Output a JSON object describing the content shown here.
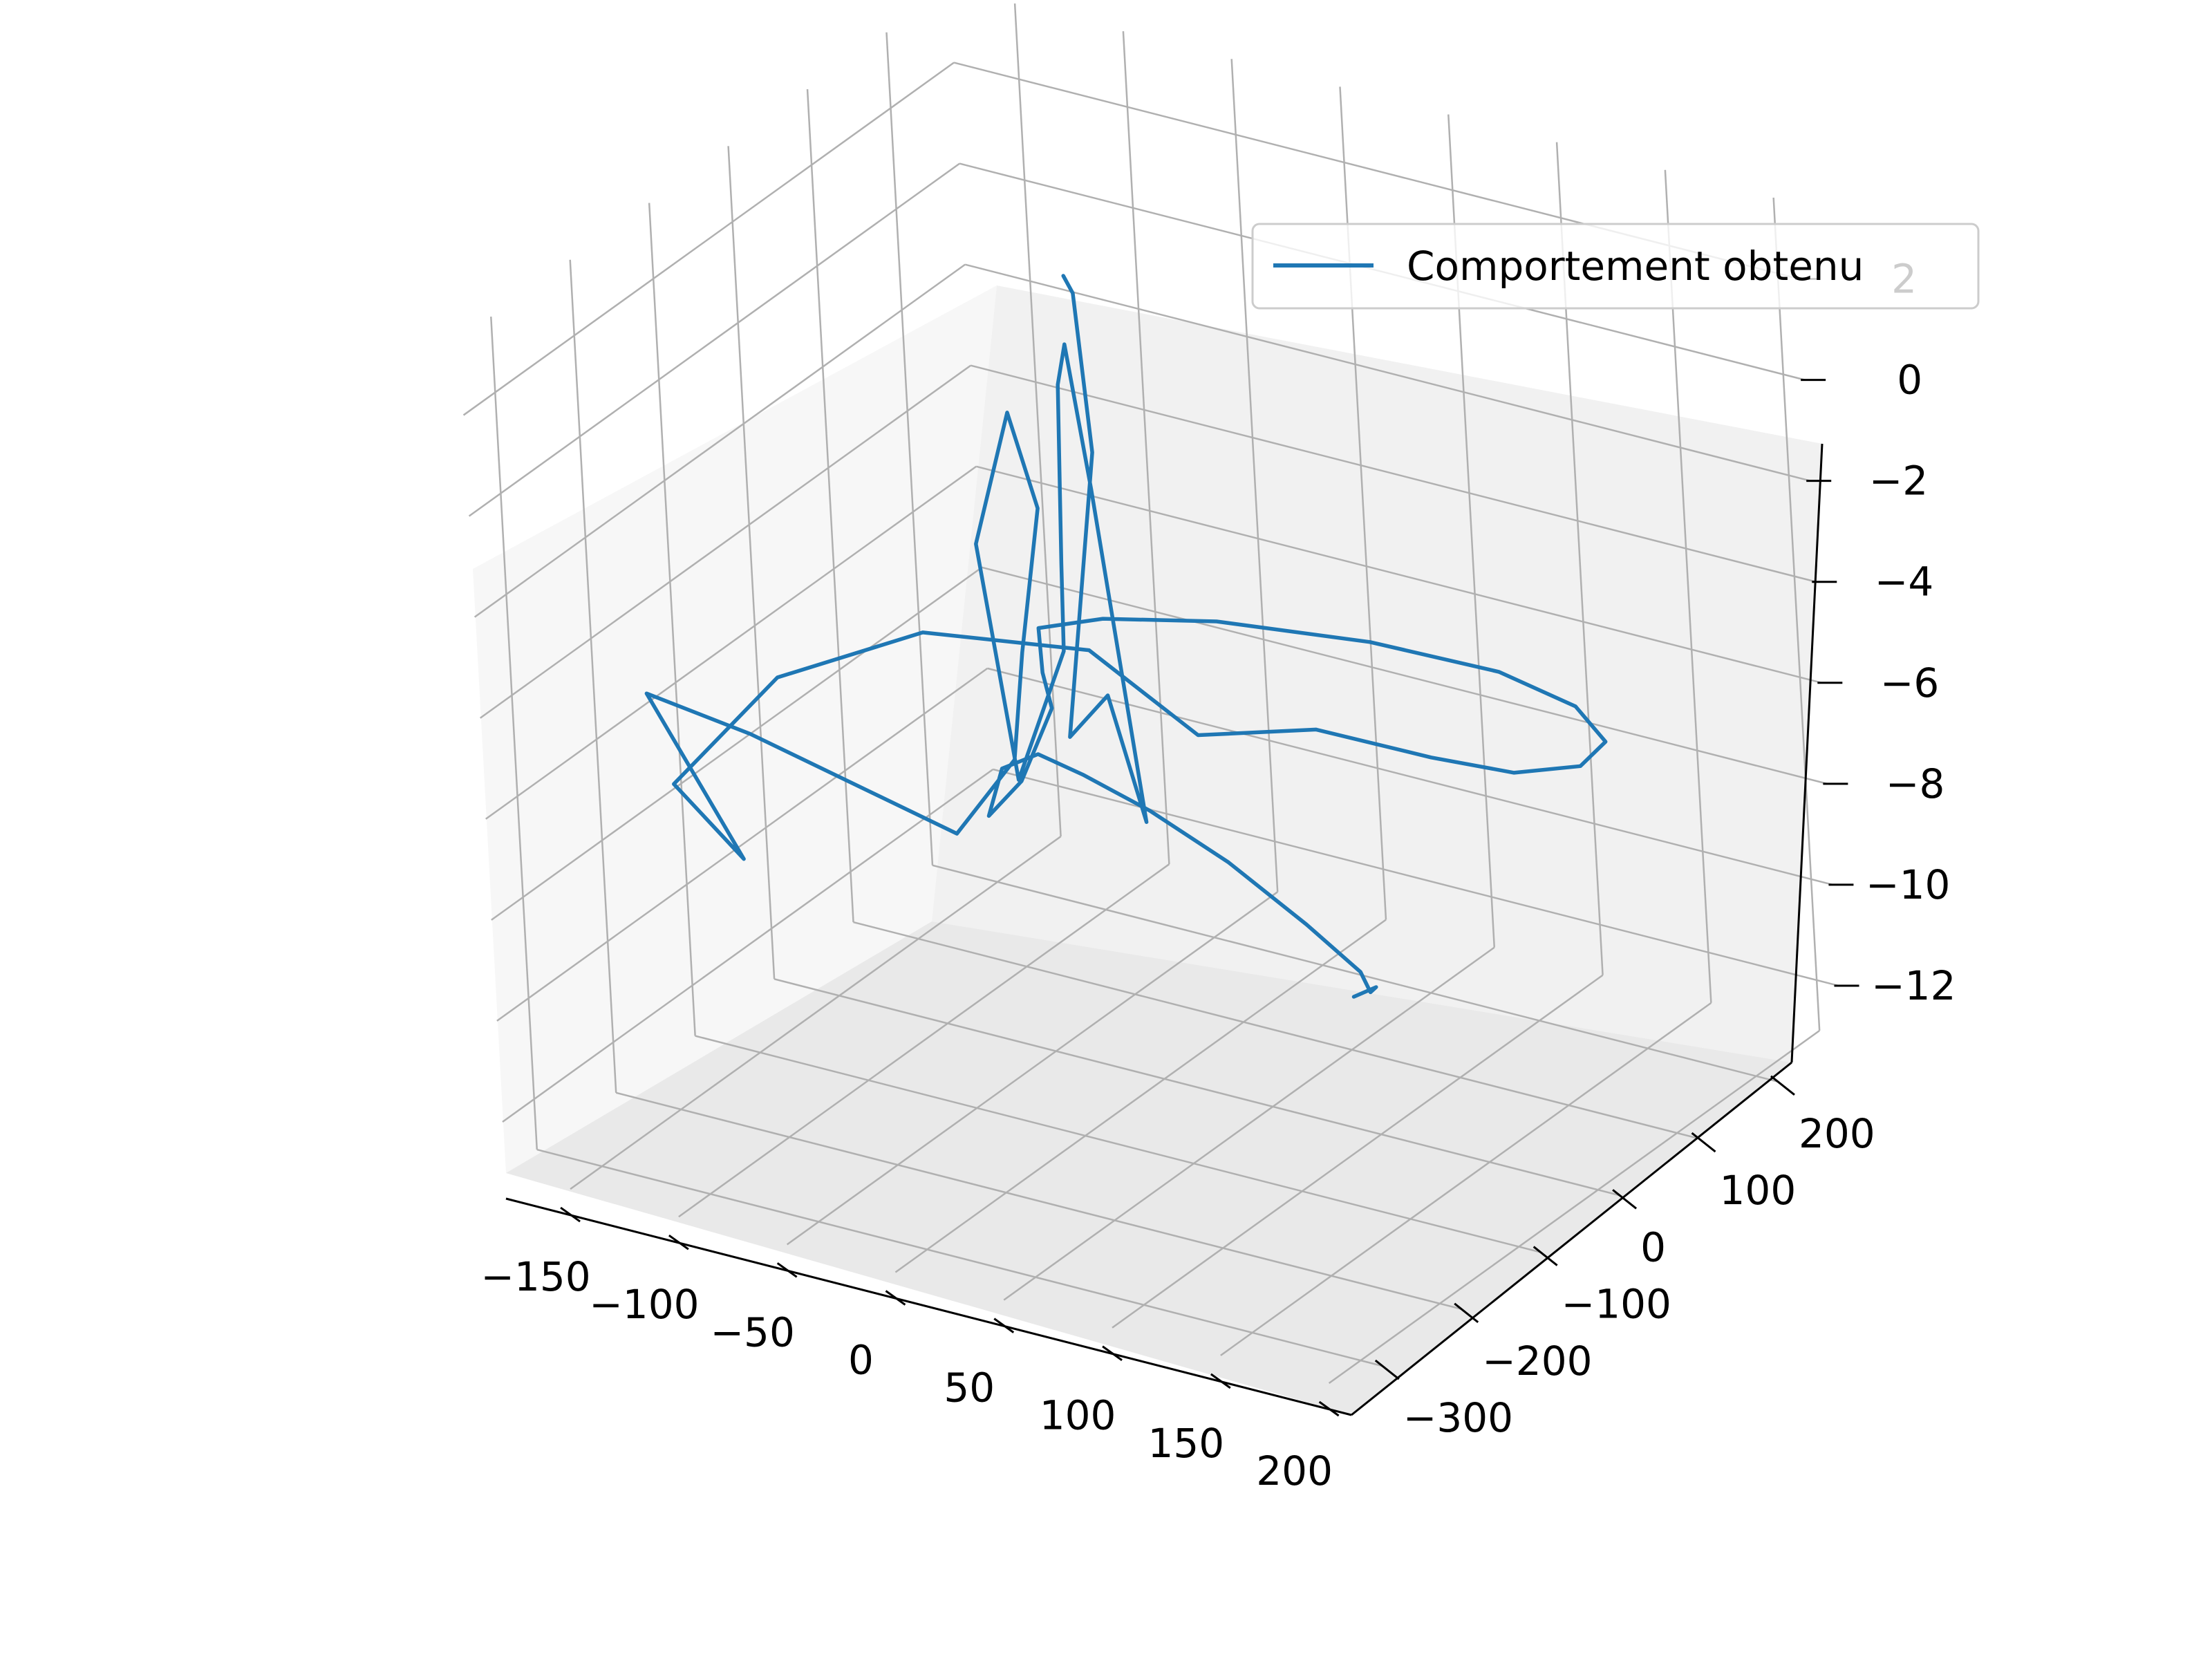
{
  "chart_data": {
    "type": "line",
    "projection": "3d",
    "title": "",
    "xlabel": "",
    "ylabel": "",
    "zlabel": "",
    "xlim": [
      -180,
      210
    ],
    "ylim": [
      -340,
      280
    ],
    "zlim": [
      -13,
      3.5
    ],
    "x_ticks": [
      "−150",
      "−100",
      "−50",
      "0",
      "50",
      "100",
      "150",
      "200"
    ],
    "y_ticks": [
      "−300",
      "−200",
      "−100",
      "0",
      "100",
      "200"
    ],
    "z_ticks": [
      "−12",
      "−10",
      "−8",
      "−6",
      "−4",
      "−2",
      "0",
      "2"
    ],
    "grid": true,
    "legend": {
      "position": "top-right",
      "entries": [
        "Comportement obtenu"
      ]
    },
    "series": [
      {
        "name": "Comportement obtenu",
        "color": "#1f77b4",
        "points": [
          [
            -27,
            1,
            2.6
          ],
          [
            -23,
            1,
            2.3
          ],
          [
            -18,
            1,
            -0.8
          ],
          [
            -30,
            -14,
            -6.4
          ],
          [
            -12,
            -12,
            -5.4
          ],
          [
            -1,
            -2,
            -7.9
          ],
          [
            -16,
            -8,
            -1.4
          ],
          [
            -24,
            -10,
            1.4
          ],
          [
            -27,
            -13,
            0.6
          ],
          [
            -28,
            -18,
            -2.9
          ],
          [
            -28,
            -21,
            -4.6
          ],
          [
            -47,
            -35,
            -7.2
          ],
          [
            -54,
            -53,
            -2.4
          ],
          [
            -41,
            -40,
            0.2
          ],
          [
            -35,
            -25,
            -1.8
          ],
          [
            -44,
            -30,
            -4.7
          ],
          [
            -48,
            -36,
            -6.8
          ],
          [
            -60,
            -80,
            -7.9
          ],
          [
            -108,
            -200,
            -5.1
          ],
          [
            -140,
            -240,
            -4.2
          ],
          [
            -118,
            -190,
            -7.8
          ],
          [
            -145,
            -200,
            -6.5
          ],
          [
            -113,
            -150,
            -4.6
          ],
          [
            -65,
            -95,
            -3.8
          ],
          [
            -5,
            -50,
            -4.0
          ],
          [
            40,
            -40,
            -5.3
          ],
          [
            80,
            0,
            -5.2
          ],
          [
            110,
            60,
            -6.1
          ],
          [
            133,
            100,
            -6.6
          ],
          [
            145,
            150,
            -6.9
          ],
          [
            142,
            190,
            -6.9
          ],
          [
            125,
            200,
            -6.5
          ],
          [
            90,
            200,
            -6.2
          ],
          [
            42,
            170,
            -5.8
          ],
          [
            -10,
            120,
            -5.4
          ],
          [
            -40,
            60,
            -5.0
          ],
          [
            -55,
            20,
            -4.9
          ],
          [
            -35,
            -30,
            -5.0
          ],
          [
            -20,
            -60,
            -5.2
          ],
          [
            -38,
            -55,
            -6.9
          ],
          [
            -60,
            -40,
            -8.0
          ],
          [
            -68,
            0,
            -7.6
          ],
          [
            -70,
            50,
            -7.9
          ],
          [
            -65,
            90,
            -8.7
          ],
          [
            -50,
            130,
            -9.7
          ],
          [
            -26,
            160,
            -10.8
          ],
          [
            5,
            170,
            -11.8
          ],
          [
            31,
            165,
            -12.4
          ],
          [
            39,
            155,
            -12.6
          ],
          [
            41,
            157,
            -12.5
          ],
          [
            33,
            150,
            -12.7
          ]
        ]
      }
    ]
  }
}
